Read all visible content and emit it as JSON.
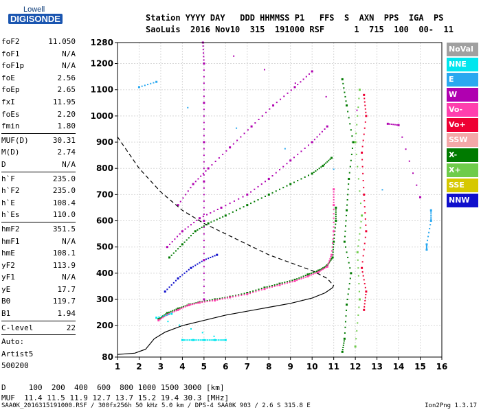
{
  "logo": {
    "line1": "Lowell",
    "line2": "DIGISONDE"
  },
  "header": {
    "line1": "Station YYYY DAY   DDD HHMMSS P1   FFS  S  AXN  PPS  IGA  PS",
    "line2": "SaoLuis  2016 Nov10  315  191000 RSF      1  715  100  00-  11"
  },
  "params": [
    {
      "name": "foF2",
      "value": "11.050"
    },
    {
      "name": "foF1",
      "value": "N/A"
    },
    {
      "name": "foF1p",
      "value": "N/A"
    },
    {
      "name": "foE",
      "value": "2.56"
    },
    {
      "name": "foEp",
      "value": "2.65"
    },
    {
      "name": "fxI",
      "value": "11.95"
    },
    {
      "name": "foEs",
      "value": "2.20"
    },
    {
      "name": "fmin",
      "value": "1.80"
    },
    {
      "name": "MUF(D)",
      "value": "30.31",
      "sep": true
    },
    {
      "name": "M(D)",
      "value": "2.74"
    },
    {
      "name": "D",
      "value": "N/A"
    },
    {
      "name": "h`F",
      "value": "235.0",
      "sep": true
    },
    {
      "name": "h`F2",
      "value": "235.0"
    },
    {
      "name": "h`E",
      "value": "108.4"
    },
    {
      "name": "h`Es",
      "value": "110.0"
    },
    {
      "name": "hmF2",
      "value": "351.5",
      "sep": true
    },
    {
      "name": "hmF1",
      "value": "N/A"
    },
    {
      "name": "hmE",
      "value": "108.1"
    },
    {
      "name": "yF2",
      "value": "113.9"
    },
    {
      "name": "yF1",
      "value": "N/A"
    },
    {
      "name": "yE",
      "value": "17.7"
    },
    {
      "name": "B0",
      "value": "119.7"
    },
    {
      "name": "B1",
      "value": "1.94"
    },
    {
      "name": "C-level",
      "value": "22",
      "sep": true
    }
  ],
  "auto": {
    "line1": "Auto:",
    "line2": "Artist5",
    "line3": "500200"
  },
  "legend": [
    {
      "label": "NoVal",
      "color": "#a0a0a0"
    },
    {
      "label": "NNE",
      "color": "#00e6ee"
    },
    {
      "label": "E",
      "color": "#2aa8f0"
    },
    {
      "label": "W",
      "color": "#b000b0"
    },
    {
      "label": "Vo-",
      "color": "#ff3fae"
    },
    {
      "label": "Vo+",
      "color": "#ee0033"
    },
    {
      "label": "SSW",
      "color": "#f4a8a8"
    },
    {
      "label": "X-",
      "color": "#007a00"
    },
    {
      "label": "X+",
      "color": "#6ecc4a"
    },
    {
      "label": "SSE",
      "color": "#d6c800"
    },
    {
      "label": "NNW",
      "color": "#1010cc"
    }
  ],
  "bottom": {
    "line1": "D     100  200  400  600  800 1000 1500 3000 [km]",
    "line2": "MUF  11.4 11.5 11.9 12.7 13.7 15.2 19.4 30.3 [MHz]"
  },
  "footer": {
    "left": "SAA0K_2016315191000.RSF / 300fx256h 50 kHz 5.0 km / DPS-4 SAA0K 903 / 2.6 S 315.8 E",
    "right": "Ion2Png 1.3.17"
  },
  "chart_data": {
    "type": "scatter",
    "xlim": [
      1,
      16
    ],
    "ylim": [
      80,
      1280
    ],
    "x_ticks": [
      "1",
      "2",
      "3",
      "4",
      "5",
      "6",
      "7",
      "8",
      "9",
      "10",
      "11",
      "12",
      "13",
      "14",
      "15",
      "16"
    ],
    "y_ticks": [
      "80",
      "200",
      "300",
      "400",
      "500",
      "600",
      "700",
      "800",
      "900",
      "1000",
      "1100",
      "1200",
      "1280"
    ],
    "grid": true,
    "series": [
      {
        "name": "X-",
        "color": "#007a00",
        "points": [
          [
            2.9,
            225
          ],
          [
            3.3,
            248
          ],
          [
            3.8,
            265
          ],
          [
            4.3,
            280
          ],
          [
            4.8,
            290
          ],
          [
            5.5,
            300
          ],
          [
            6.2,
            310
          ],
          [
            7.0,
            325
          ],
          [
            7.8,
            345
          ],
          [
            8.5,
            360
          ],
          [
            9.2,
            375
          ],
          [
            9.8,
            395
          ],
          [
            10.3,
            410
          ],
          [
            10.7,
            430
          ],
          [
            10.95,
            460
          ],
          [
            11.0,
            520
          ],
          [
            11.1,
            600
          ],
          [
            11.1,
            650
          ]
        ]
      },
      {
        "name": "Vo-",
        "color": "#ff3fae",
        "points": [
          [
            2.9,
            220
          ],
          [
            3.3,
            242
          ],
          [
            3.8,
            260
          ],
          [
            4.3,
            278
          ],
          [
            4.8,
            288
          ],
          [
            5.5,
            296
          ],
          [
            6.2,
            308
          ],
          [
            7.0,
            320
          ],
          [
            7.8,
            340
          ],
          [
            8.5,
            355
          ],
          [
            9.2,
            370
          ],
          [
            9.8,
            388
          ],
          [
            10.3,
            405
          ],
          [
            10.7,
            425
          ],
          [
            10.9,
            470
          ],
          [
            11.0,
            560
          ],
          [
            11.0,
            660
          ],
          [
            11.0,
            720
          ]
        ]
      },
      {
        "name": "X-",
        "color": "#007a00",
        "points": [
          [
            3.4,
            460
          ],
          [
            4.0,
            510
          ],
          [
            4.6,
            560
          ],
          [
            5.2,
            590
          ],
          [
            6.0,
            620
          ],
          [
            7.0,
            660
          ],
          [
            8.0,
            700
          ],
          [
            9.0,
            740
          ],
          [
            10.0,
            780
          ],
          [
            10.5,
            810
          ],
          [
            10.9,
            840
          ]
        ]
      },
      {
        "name": "W",
        "color": "#b000b0",
        "points": [
          [
            3.3,
            500
          ],
          [
            4.0,
            560
          ],
          [
            4.8,
            610
          ],
          [
            5.8,
            650
          ],
          [
            7.0,
            700
          ],
          [
            8.0,
            760
          ],
          [
            9.0,
            830
          ],
          [
            10.0,
            900
          ],
          [
            10.7,
            960
          ]
        ]
      },
      {
        "name": "W",
        "color": "#b000b0",
        "points": [
          [
            3.8,
            660
          ],
          [
            4.5,
            740
          ],
          [
            5.2,
            800
          ],
          [
            6.2,
            880
          ],
          [
            7.2,
            960
          ],
          [
            8.2,
            1040
          ],
          [
            9.2,
            1110
          ],
          [
            10.0,
            1170
          ]
        ]
      },
      {
        "name": "NNW",
        "color": "#1010cc",
        "points": [
          [
            3.2,
            330
          ],
          [
            3.8,
            380
          ],
          [
            4.4,
            420
          ],
          [
            5.0,
            450
          ],
          [
            5.6,
            470
          ]
        ]
      },
      {
        "name": "X-",
        "color": "#007a00",
        "points": [
          [
            11.4,
            100
          ],
          [
            11.5,
            150
          ],
          [
            11.6,
            280
          ],
          [
            11.8,
            400
          ],
          [
            11.5,
            520
          ],
          [
            11.6,
            640
          ],
          [
            11.7,
            760
          ],
          [
            11.9,
            900
          ],
          [
            11.6,
            1040
          ],
          [
            11.4,
            1140
          ]
        ]
      },
      {
        "name": "Vo+",
        "color": "#ee0033",
        "points": [
          [
            12.4,
            260
          ],
          [
            12.5,
            330
          ],
          [
            12.3,
            420
          ],
          [
            12.5,
            560
          ],
          [
            12.4,
            700
          ],
          [
            12.3,
            860
          ],
          [
            12.5,
            1000
          ],
          [
            12.4,
            1080
          ]
        ]
      },
      {
        "name": "X+",
        "color": "#6ecc4a",
        "points": [
          [
            12.0,
            120
          ],
          [
            12.2,
            300
          ],
          [
            12.1,
            480
          ],
          [
            12.3,
            620
          ],
          [
            12.0,
            900
          ],
          [
            12.2,
            1100
          ]
        ]
      },
      {
        "name": "E",
        "color": "#2aa8f0",
        "points": [
          [
            15.3,
            490
          ],
          [
            15.3,
            510
          ],
          [
            15.5,
            600
          ],
          [
            15.5,
            640
          ],
          [
            2.0,
            1110
          ],
          [
            2.8,
            1130
          ]
        ]
      },
      {
        "name": "NNE",
        "color": "#00e6ee",
        "points": [
          [
            4.0,
            145
          ],
          [
            4.5,
            145
          ],
          [
            5.0,
            145
          ],
          [
            5.5,
            145
          ],
          [
            6.0,
            145
          ],
          [
            2.8,
            230
          ],
          [
            3.5,
            245
          ]
        ]
      },
      {
        "name": "W",
        "color": "#b000b0",
        "points": [
          [
            5.0,
            300
          ],
          [
            5.0,
            450
          ],
          [
            5.0,
            600
          ],
          [
            5.0,
            750
          ],
          [
            5.0,
            900
          ],
          [
            5.0,
            1050
          ],
          [
            5.0,
            1200
          ],
          [
            4.95,
            1280
          ],
          [
            13.5,
            970
          ],
          [
            14.0,
            965
          ],
          [
            15.0,
            690
          ]
        ]
      }
    ],
    "profile": [
      [
        1.0,
        90
      ],
      [
        1.8,
        95
      ],
      [
        2.3,
        110
      ],
      [
        2.7,
        150
      ],
      [
        3.2,
        175
      ],
      [
        4.0,
        200
      ],
      [
        5.0,
        220
      ],
      [
        6.0,
        240
      ],
      [
        7.0,
        255
      ],
      [
        8.0,
        270
      ],
      [
        9.0,
        285
      ],
      [
        10.0,
        305
      ],
      [
        10.6,
        325
      ],
      [
        10.95,
        345
      ],
      [
        11.0,
        355
      ]
    ],
    "curve": [
      [
        1.0,
        920
      ],
      [
        2.0,
        800
      ],
      [
        3.0,
        710
      ],
      [
        4.0,
        640
      ],
      [
        5.0,
        590
      ],
      [
        6.0,
        550
      ],
      [
        7.0,
        510
      ],
      [
        8.0,
        470
      ],
      [
        9.0,
        440
      ],
      [
        10.0,
        410
      ],
      [
        10.7,
        380
      ],
      [
        11.0,
        352
      ]
    ]
  }
}
